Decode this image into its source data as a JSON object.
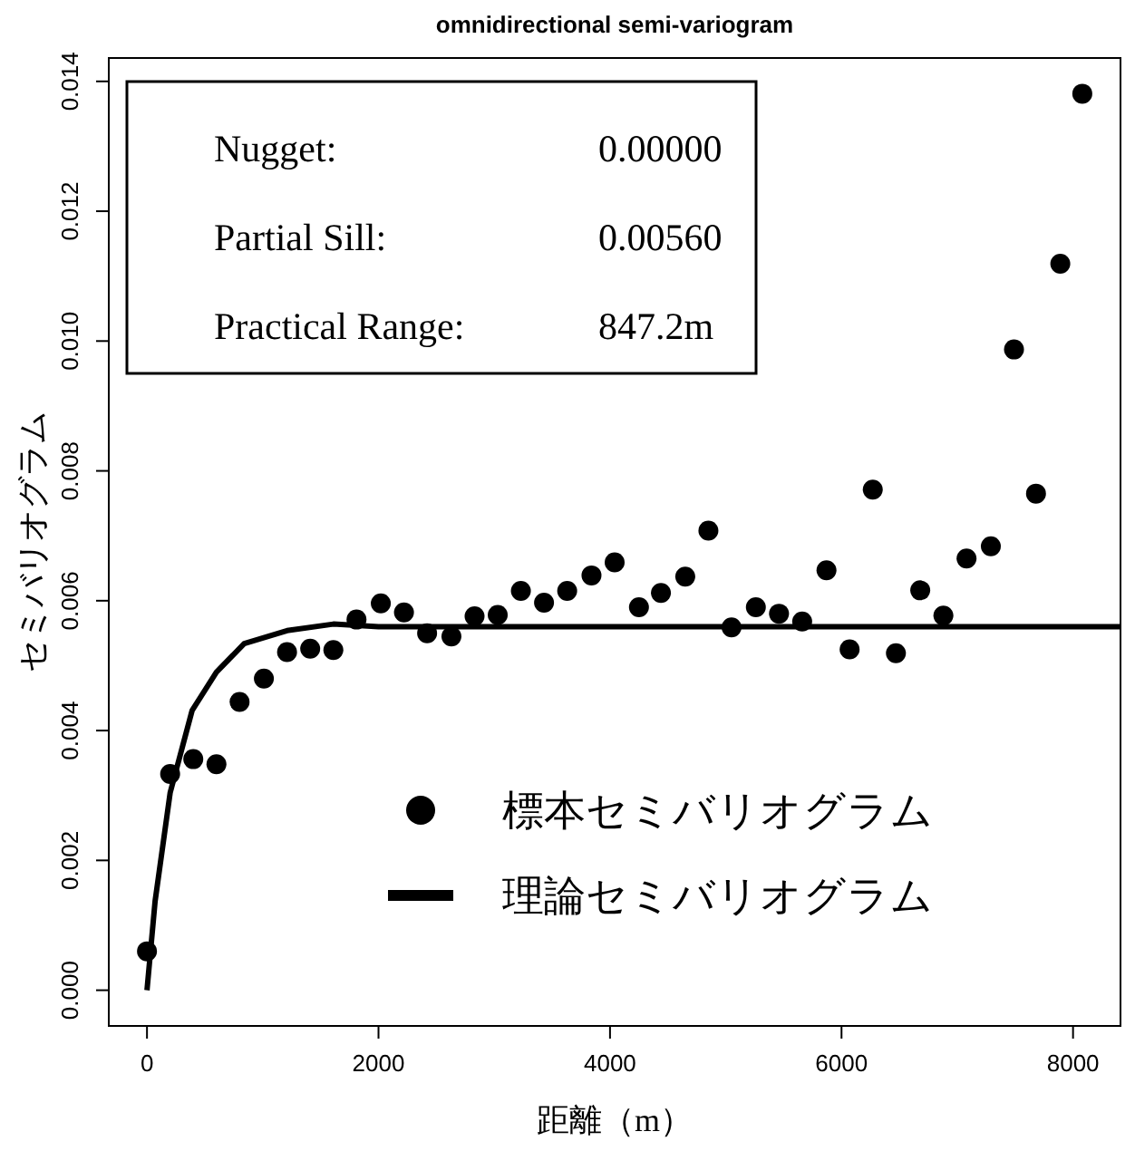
{
  "chart_data": {
    "type": "scatter",
    "title": "omnidirectional semi-variogram",
    "xlabel": "距離（m）",
    "ylabel": "セミバリオグラム",
    "xlim": [
      -330,
      8410
    ],
    "ylim": [
      -0.00055,
      0.01436
    ],
    "xticks": [
      0,
      2000,
      4000,
      6000,
      8000
    ],
    "yticks": [
      {
        "value": 0,
        "label": "0.000"
      },
      0.002,
      0.004,
      0.006,
      0.008,
      {
        "value": 0.01,
        "label": "0.010"
      },
      0.012,
      0.014
    ],
    "legend": "bottom right",
    "marker": "circle",
    "annotations": [
      "Nugget:",
      "0.00000",
      "Partial Sill:",
      "0.00560",
      "Practical Range:",
      "847.2m"
    ],
    "series": [
      {
        "name": "標本セミバリオグラム",
        "color": "#000000",
        "x": [
          0,
          200,
          400,
          600,
          800,
          1010,
          1210,
          1410,
          1610,
          1810,
          2020,
          2220,
          2420,
          2630,
          2830,
          3030,
          3230,
          3430,
          3630,
          3840,
          4040,
          4250,
          4440,
          4650,
          4850,
          5050,
          5260,
          5460,
          5660,
          5870,
          6070,
          6270,
          6470,
          6680,
          6880,
          7080,
          7290,
          7490,
          7680,
          7890,
          8080
        ],
        "values": [
          0.0006,
          0.00333,
          0.00356,
          0.00348,
          0.00444,
          0.0048,
          0.00521,
          0.00526,
          0.00524,
          0.00571,
          0.00596,
          0.00582,
          0.0055,
          0.00545,
          0.00576,
          0.00578,
          0.00615,
          0.00597,
          0.00615,
          0.00639,
          0.00659,
          0.0059,
          0.00612,
          0.00637,
          0.00708,
          0.00559,
          0.0059,
          0.0058,
          0.00568,
          0.00647,
          0.00525,
          0.00771,
          0.00519,
          0.00616,
          0.00577,
          0.00665,
          0.00684,
          0.00987,
          0.00765,
          0.01119,
          0.01381
        ]
      },
      {
        "name": "理論セミバリオグラム",
        "type": "line",
        "color": "#000000",
        "marker": "none",
        "line_style": "solid",
        "x": [
          0,
          70,
          200,
          390,
          600,
          840,
          1210,
          1610,
          2000,
          8410
        ],
        "values": [
          0,
          0.00137,
          0.00304,
          0.00431,
          0.0049,
          0.00534,
          0.00554,
          0.00564,
          0.0056,
          0.0056
        ]
      }
    ]
  }
}
